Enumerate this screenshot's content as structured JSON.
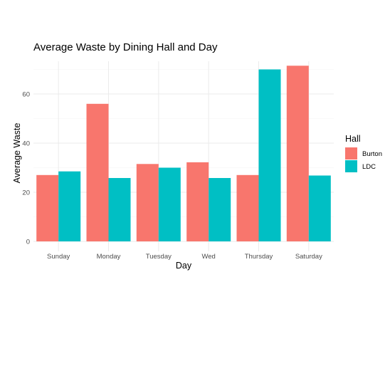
{
  "chart_data": {
    "type": "bar",
    "title": "Average Waste by Dining Hall and Day",
    "xlabel": "Day",
    "ylabel": "Average Waste",
    "categories": [
      "Sunday",
      "Monday",
      "Tuesday",
      "Wed",
      "Thursday",
      "Saturday"
    ],
    "series": [
      {
        "name": "Burton",
        "color": "#F8766D",
        "values": [
          27,
          56,
          31.5,
          32.2,
          27,
          71.5
        ]
      },
      {
        "name": "LDC",
        "color": "#00BFC4",
        "values": [
          28.5,
          25.8,
          30,
          25.8,
          70,
          26.8
        ]
      }
    ],
    "ylim": [
      0,
      75
    ],
    "yticks": [
      0,
      20,
      40,
      60
    ],
    "grid": true,
    "legend": {
      "title": "Hall",
      "position": "right"
    }
  }
}
